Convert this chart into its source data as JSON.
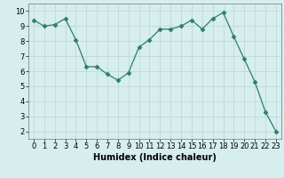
{
  "x": [
    0,
    1,
    2,
    3,
    4,
    5,
    6,
    7,
    8,
    9,
    10,
    11,
    12,
    13,
    14,
    15,
    16,
    17,
    18,
    19,
    20,
    21,
    22,
    23
  ],
  "y": [
    9.4,
    9.0,
    9.1,
    9.5,
    8.1,
    6.3,
    6.3,
    5.8,
    5.4,
    5.9,
    7.6,
    8.1,
    8.8,
    8.8,
    9.0,
    9.4,
    8.8,
    9.5,
    9.9,
    8.3,
    6.8,
    5.3,
    3.3,
    2.0
  ],
  "xlabel": "Humidex (Indice chaleur)",
  "line_color": "#2e7d6e",
  "marker": "D",
  "marker_size": 2.5,
  "bg_color": "#d6eeee",
  "grid_color": "#c0d8d8",
  "ylim": [
    1.5,
    10.5
  ],
  "xlim": [
    -0.5,
    23.5
  ],
  "yticks": [
    2,
    3,
    4,
    5,
    6,
    7,
    8,
    9,
    10
  ],
  "xticks": [
    0,
    1,
    2,
    3,
    4,
    5,
    6,
    7,
    8,
    9,
    10,
    11,
    12,
    13,
    14,
    15,
    16,
    17,
    18,
    19,
    20,
    21,
    22,
    23
  ],
  "tick_fontsize": 6,
  "xlabel_fontsize": 7
}
